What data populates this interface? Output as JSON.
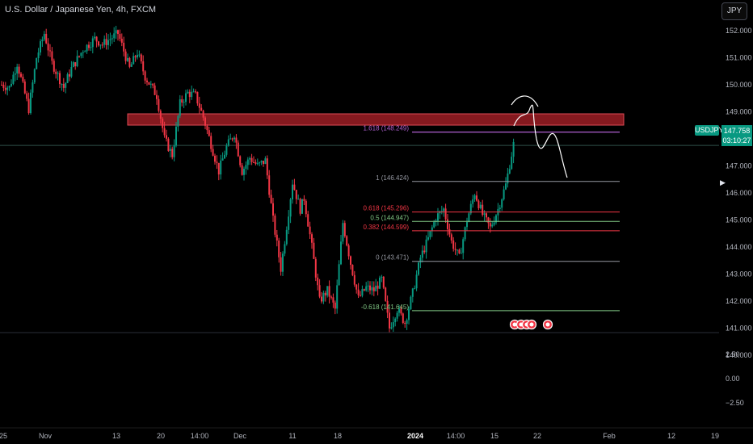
{
  "header": {
    "title": "U.S. Dollar / Japanese Yen, 4h, FXCM",
    "currency_button": "JPY"
  },
  "price_axis": {
    "ticks": [
      "152.000",
      "151.000",
      "150.000",
      "149.000",
      "148.000",
      "147.000",
      "146.000",
      "145.000",
      "144.000",
      "143.000",
      "142.000",
      "141.000",
      "140.000"
    ]
  },
  "indicator_axis": {
    "ticks": [
      "2.50",
      "0.00",
      "−2.50"
    ]
  },
  "time_axis": {
    "labels": [
      "25",
      "Nov",
      "13",
      "20",
      "14:00",
      "Dec",
      "11",
      "18",
      "2024",
      "14:00",
      "15",
      "22",
      "Feb",
      "12",
      "19"
    ]
  },
  "current_price": {
    "symbol": "USDJPY",
    "price": "147.758",
    "countdown": "03:10:27"
  },
  "fibonacci": {
    "levels": [
      {
        "label": "1.618 (148.249)",
        "price": 148.249,
        "color": "#b05fd0"
      },
      {
        "label": "1 (146.424)",
        "price": 146.424,
        "color": "#9598a1"
      },
      {
        "label": "0.618 (145.296)",
        "price": 145.296,
        "color": "#f23645"
      },
      {
        "label": "0.5 (144.947)",
        "price": 144.947,
        "color": "#81c784"
      },
      {
        "label": "0.382 (144.599)",
        "price": 144.599,
        "color": "#f23645"
      },
      {
        "label": "0 (143.471)",
        "price": 143.471,
        "color": "#9598a1"
      },
      {
        "label": "-0.618 (141.645)",
        "price": 141.645,
        "color": "#81c784"
      }
    ]
  },
  "resistance_zone": {
    "top": 148.2,
    "bottom": 147.8,
    "color": "#b2222a"
  },
  "colors": {
    "up": "#089981",
    "down": "#f23645",
    "background": "#000000",
    "text": "#d1d4dc"
  },
  "chart_data": {
    "type": "candlestick",
    "symbol": "USDJPY",
    "timeframe": "4h",
    "ylim": [
      139.3,
      152.8
    ],
    "path": [
      {
        "t": 0,
        "p": 150.0
      },
      {
        "t": 2,
        "p": 149.9
      },
      {
        "t": 4,
        "p": 150.8
      },
      {
        "t": 7,
        "p": 149.1
      },
      {
        "t": 9,
        "p": 151.0
      },
      {
        "t": 11,
        "p": 151.9
      },
      {
        "t": 13,
        "p": 150.8
      },
      {
        "t": 16,
        "p": 149.9
      },
      {
        "t": 18,
        "p": 150.6
      },
      {
        "t": 21,
        "p": 151.3
      },
      {
        "t": 24,
        "p": 151.7
      },
      {
        "t": 26,
        "p": 151.5
      },
      {
        "t": 30,
        "p": 151.9
      },
      {
        "t": 33,
        "p": 150.6
      },
      {
        "t": 35,
        "p": 151.2
      },
      {
        "t": 37,
        "p": 150.3
      },
      {
        "t": 40,
        "p": 149.6
      },
      {
        "t": 42,
        "p": 148.0
      },
      {
        "t": 44,
        "p": 147.4
      },
      {
        "t": 46,
        "p": 149.3
      },
      {
        "t": 48,
        "p": 149.7
      },
      {
        "t": 50,
        "p": 149.6
      },
      {
        "t": 52,
        "p": 148.8
      },
      {
        "t": 54,
        "p": 147.8
      },
      {
        "t": 56,
        "p": 146.8
      },
      {
        "t": 58,
        "p": 147.7
      },
      {
        "t": 60,
        "p": 148.2
      },
      {
        "t": 62,
        "p": 146.8
      },
      {
        "t": 64,
        "p": 147.3
      },
      {
        "t": 66,
        "p": 147.0
      },
      {
        "t": 68,
        "p": 147.2
      },
      {
        "t": 70,
        "p": 145.0
      },
      {
        "t": 72,
        "p": 143.2
      },
      {
        "t": 74,
        "p": 145.3
      },
      {
        "t": 75,
        "p": 146.4
      },
      {
        "t": 77,
        "p": 145.4
      },
      {
        "t": 78,
        "p": 145.8
      },
      {
        "t": 80,
        "p": 144.0
      },
      {
        "t": 82,
        "p": 142.0
      },
      {
        "t": 84,
        "p": 142.4
      },
      {
        "t": 86,
        "p": 141.7
      },
      {
        "t": 88,
        "p": 144.9
      },
      {
        "t": 90,
        "p": 143.4
      },
      {
        "t": 92,
        "p": 142.1
      },
      {
        "t": 94,
        "p": 142.5
      },
      {
        "t": 96,
        "p": 142.4
      },
      {
        "t": 98,
        "p": 142.8
      },
      {
        "t": 100,
        "p": 141.0
      },
      {
        "t": 102,
        "p": 141.7
      },
      {
        "t": 104,
        "p": 141.2
      },
      {
        "t": 106,
        "p": 142.3
      },
      {
        "t": 108,
        "p": 143.6
      },
      {
        "t": 110,
        "p": 144.3
      },
      {
        "t": 112,
        "p": 145.1
      },
      {
        "t": 114,
        "p": 145.4
      },
      {
        "t": 116,
        "p": 144.2
      },
      {
        "t": 118,
        "p": 143.6
      },
      {
        "t": 120,
        "p": 145.0
      },
      {
        "t": 122,
        "p": 146.0
      },
      {
        "t": 124,
        "p": 145.2
      },
      {
        "t": 126,
        "p": 144.7
      },
      {
        "t": 128,
        "p": 145.4
      },
      {
        "t": 130,
        "p": 146.3
      },
      {
        "t": 132,
        "p": 147.8
      }
    ]
  }
}
